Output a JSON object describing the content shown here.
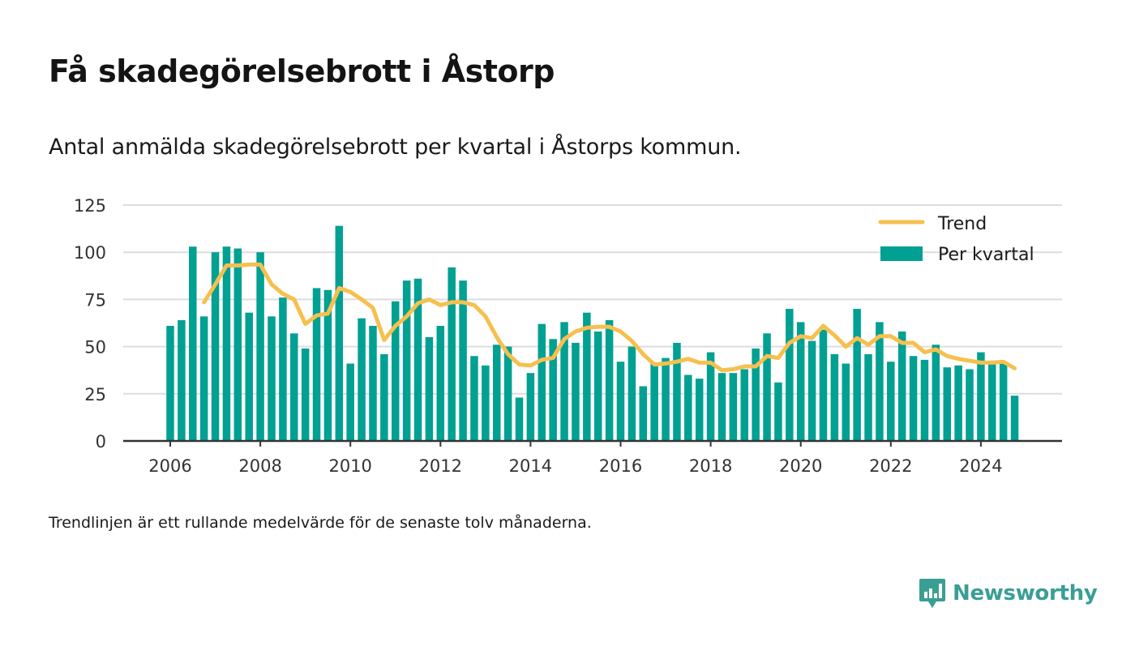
{
  "title": "Få skadegörelsebrott i Åstorp",
  "subtitle": "Antal anmälda skadegörelsebrott per kvartal i Åstorps kommun.",
  "footnote": "Trendlinjen är ett rullande medelvärde för de senaste tolv månaderna.",
  "brand": {
    "name": "Newsworthy",
    "icon": "newsworthy-logo-icon",
    "color": "#3a9e95"
  },
  "chart_data": {
    "type": "bar",
    "x_start_year": 2006,
    "quarters_per_year": 4,
    "ylim": [
      0,
      125
    ],
    "yticks": [
      "0",
      "25",
      "50",
      "75",
      "100",
      "125"
    ],
    "xticks": [
      "2006",
      "2008",
      "2010",
      "2012",
      "2014",
      "2016",
      "2018",
      "2020",
      "2022",
      "2024"
    ],
    "grid": true,
    "legend_position": "top-right",
    "colors": {
      "bars": "#00a093",
      "trend": "#f6c04f",
      "grid": "#dddddd",
      "axis": "#333333"
    },
    "series": [
      {
        "name": "Per kvartal",
        "kind": "bar",
        "values": [
          61,
          64,
          103,
          66,
          100,
          103,
          102,
          68,
          100,
          66,
          76,
          57,
          49,
          81,
          80,
          114,
          41,
          65,
          61,
          46,
          74,
          85,
          86,
          55,
          61,
          92,
          85,
          45,
          40,
          51,
          50,
          23,
          36,
          62,
          54,
          63,
          52,
          68,
          58,
          64,
          42,
          50,
          29,
          41,
          44,
          52,
          35,
          33,
          47,
          36,
          36,
          38,
          49,
          57,
          31,
          70,
          63,
          53,
          59,
          46,
          41,
          70,
          46,
          63,
          42,
          58,
          45,
          43,
          51,
          39,
          40,
          38,
          47,
          42,
          41,
          24
        ]
      },
      {
        "name": "Trend",
        "kind": "line",
        "values": [
          null,
          null,
          null,
          73.5,
          83,
          93,
          93,
          93.5,
          93.5,
          83,
          78,
          75,
          62,
          66.5,
          67.5,
          81,
          79,
          75,
          70.5,
          53.5,
          61,
          66,
          73,
          75,
          72,
          73.5,
          73.5,
          72,
          66,
          55,
          46,
          40.5,
          40,
          43,
          44,
          54,
          58,
          60,
          60.5,
          60.5,
          58,
          53,
          46,
          40.5,
          41,
          42,
          43.5,
          41.5,
          41.5,
          37.5,
          38,
          39.5,
          39.5,
          45,
          44,
          52,
          55.5,
          54.5,
          61,
          56,
          50,
          54.5,
          51,
          55.5,
          55.5,
          52,
          52,
          47,
          48.5,
          45,
          43.5,
          42.5,
          41.5,
          41.5,
          42,
          38.5
        ]
      }
    ]
  }
}
